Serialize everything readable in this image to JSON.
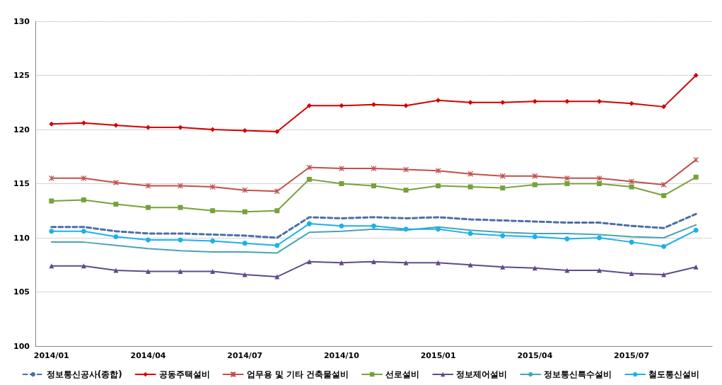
{
  "chart_data": {
    "type": "line",
    "categories": [
      "2014/01",
      null,
      null,
      "2014/04",
      null,
      null,
      "2014/07",
      null,
      null,
      "2014/10",
      null,
      null,
      "2015/01",
      null,
      null,
      "2015/04",
      null,
      null,
      "2015/07",
      null,
      null
    ],
    "ylim": [
      100,
      130
    ],
    "yticks": [
      100,
      105,
      110,
      115,
      120,
      125,
      130
    ],
    "grid": "y",
    "legend": "bottom",
    "series": [
      {
        "name": "정보통신공사(종합)",
        "color": "#4a6fa5",
        "marker": "none",
        "line_style": "dashed",
        "values": [
          111.0,
          111.0,
          110.6,
          110.4,
          110.4,
          110.3,
          110.2,
          110.0,
          111.9,
          111.8,
          111.9,
          111.8,
          111.9,
          111.7,
          111.6,
          111.5,
          111.4,
          111.4,
          111.1,
          110.9,
          112.2
        ]
      },
      {
        "name": "공동주택설비",
        "color": "#d40000",
        "marker": "diamond",
        "values": [
          120.5,
          120.6,
          120.4,
          120.2,
          120.2,
          120.0,
          119.9,
          119.8,
          122.2,
          122.2,
          122.3,
          122.2,
          122.7,
          122.5,
          122.5,
          122.6,
          122.6,
          122.6,
          122.4,
          122.1,
          125.0
        ]
      },
      {
        "name": "업무용 및 기타 건축물설비",
        "color": "#c0504d",
        "marker": "cross",
        "values": [
          115.5,
          115.5,
          115.1,
          114.8,
          114.8,
          114.7,
          114.4,
          114.3,
          116.5,
          116.4,
          116.4,
          116.3,
          116.2,
          115.9,
          115.7,
          115.7,
          115.5,
          115.5,
          115.2,
          114.9,
          117.2
        ]
      },
      {
        "name": "선로설비",
        "color": "#77a13c",
        "marker": "square",
        "values": [
          113.4,
          113.5,
          113.1,
          112.8,
          112.8,
          112.5,
          112.4,
          112.5,
          115.4,
          115.0,
          114.8,
          114.4,
          114.8,
          114.7,
          114.6,
          114.9,
          115.0,
          115.0,
          114.7,
          113.9,
          115.6
        ]
      },
      {
        "name": "정보제어설비",
        "color": "#5f4b8b",
        "marker": "triangle",
        "values": [
          107.4,
          107.4,
          107.0,
          106.9,
          106.9,
          106.9,
          106.6,
          106.4,
          107.8,
          107.7,
          107.8,
          107.7,
          107.7,
          107.5,
          107.3,
          107.2,
          107.0,
          107.0,
          106.7,
          106.6,
          107.3
        ]
      },
      {
        "name": "정보통신특수설비",
        "color": "#4aa3b5",
        "marker": "none",
        "values": [
          109.6,
          109.6,
          109.3,
          109.0,
          108.8,
          108.7,
          108.7,
          108.6,
          110.5,
          110.6,
          110.8,
          110.7,
          111.0,
          110.7,
          110.5,
          110.4,
          110.4,
          110.3,
          110.1,
          110.0,
          111.2
        ]
      },
      {
        "name": "철도통신설비",
        "color": "#1ab2ea",
        "marker": "circle",
        "values": [
          110.6,
          110.6,
          110.1,
          109.8,
          109.8,
          109.7,
          109.5,
          109.3,
          111.3,
          111.1,
          111.1,
          110.8,
          110.8,
          110.4,
          110.2,
          110.1,
          109.9,
          110.0,
          109.6,
          109.2,
          110.7
        ]
      }
    ]
  }
}
